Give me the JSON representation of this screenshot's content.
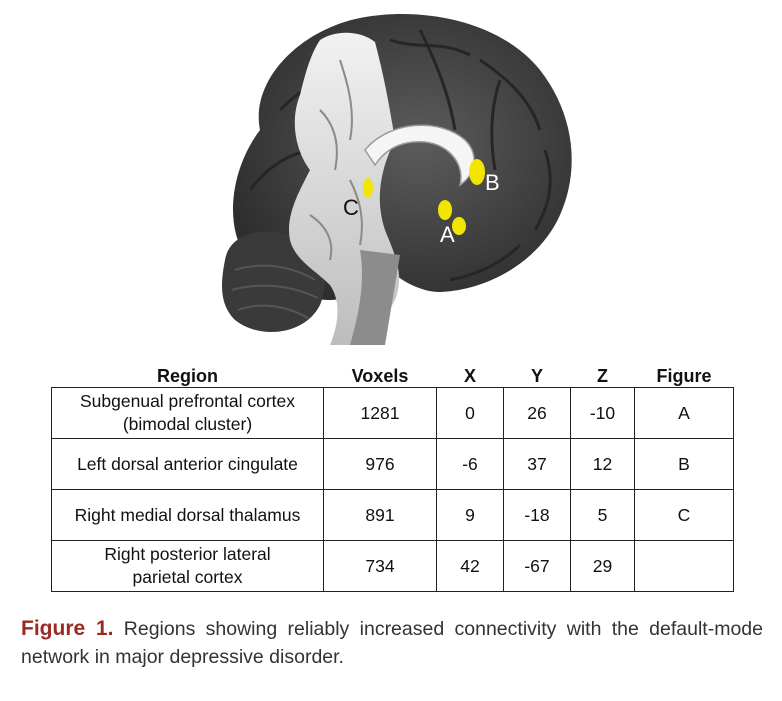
{
  "figure": {
    "region_labels": {
      "a": "A",
      "b": "B",
      "c": "C"
    },
    "highlight_color": "#f2e600",
    "brain_colors": {
      "gyri": "#4a4a4a",
      "white_matter": "#e6e6e6",
      "sulci": "#2a2a2a"
    }
  },
  "table": {
    "headers": [
      "Region",
      "Voxels",
      "X",
      "Y",
      "Z",
      "Figure"
    ],
    "rows": [
      {
        "region": [
          "Subgenual prefrontal cortex",
          "(bimodal cluster)"
        ],
        "voxels": "1281",
        "x": "0",
        "y": "26",
        "z": "-10",
        "figure": "A"
      },
      {
        "region": [
          "Left dorsal anterior cingulate",
          ""
        ],
        "voxels": "976",
        "x": "-6",
        "y": "37",
        "z": "12",
        "figure": "B"
      },
      {
        "region": [
          "Right medial dorsal thalamus",
          ""
        ],
        "voxels": "891",
        "x": "9",
        "y": "-18",
        "z": "5",
        "figure": "C"
      },
      {
        "region": [
          "Right posterior lateral",
          "parietal cortex"
        ],
        "voxels": "734",
        "x": "42",
        "y": "-67",
        "z": "29",
        "figure": ""
      }
    ]
  },
  "caption": {
    "label": "Figure 1.",
    "text": "Regions showing reliably increased connectivity with the default-mode network in major depressive disorder."
  }
}
